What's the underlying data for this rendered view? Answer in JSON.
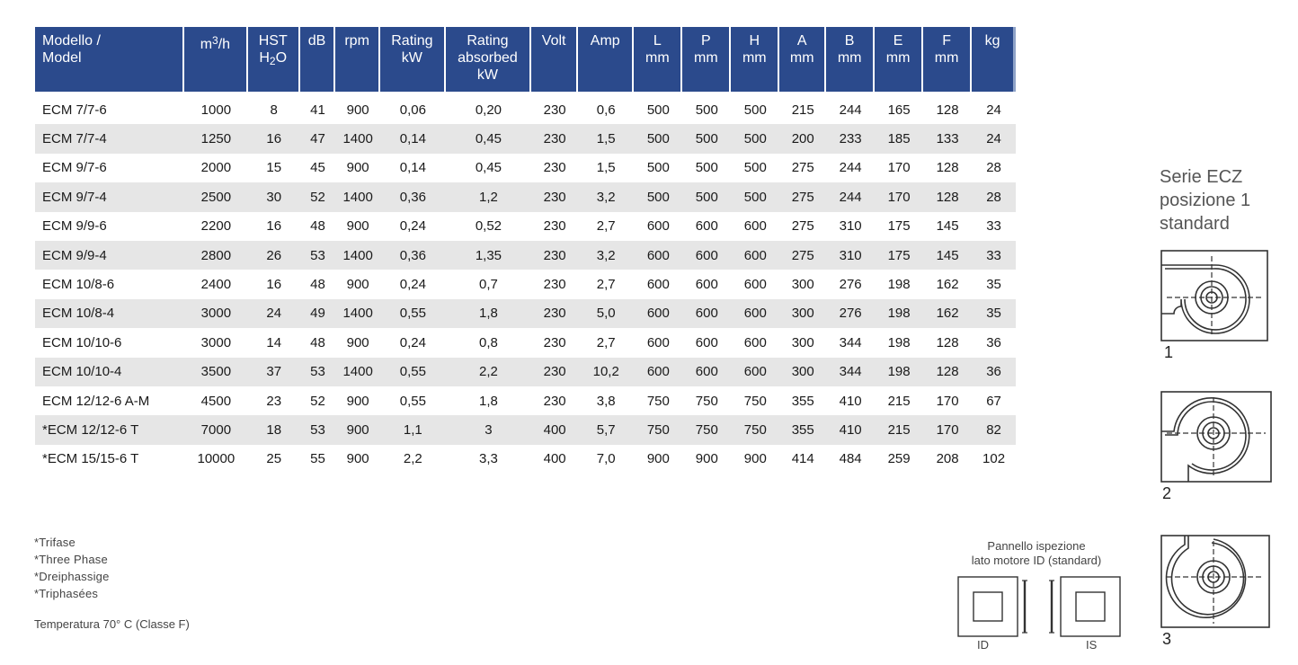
{
  "table": {
    "headers": [
      {
        "line1": "Modello /",
        "line2": "Model"
      },
      {
        "base": "m",
        "sup": "3",
        "rest": "/h"
      },
      {
        "line1": "HST",
        "base2": "H",
        "sub": "2",
        "rest2": "O"
      },
      {
        "line1": "dB"
      },
      {
        "line1": "rpm"
      },
      {
        "line1": "Rating",
        "line2": "kW"
      },
      {
        "line1": "Rating",
        "line2": "absorbed",
        "line3": "kW"
      },
      {
        "line1": "Volt"
      },
      {
        "line1": "Amp"
      },
      {
        "line1": "L",
        "line2": "mm"
      },
      {
        "line1": "P",
        "line2": "mm"
      },
      {
        "line1": "H",
        "line2": "mm"
      },
      {
        "line1": "A",
        "line2": "mm"
      },
      {
        "line1": "B",
        "line2": "mm"
      },
      {
        "line1": "E",
        "line2": "mm"
      },
      {
        "line1": "F",
        "line2": "mm"
      },
      {
        "line1": "kg"
      }
    ],
    "rows": [
      [
        "ECM 7/7-6",
        "1000",
        "8",
        "41",
        "900",
        "0,06",
        "0,20",
        "230",
        "0,6",
        "500",
        "500",
        "500",
        "215",
        "244",
        "165",
        "128",
        "24"
      ],
      [
        "ECM 7/7-4",
        "1250",
        "16",
        "47",
        "1400",
        "0,14",
        "0,45",
        "230",
        "1,5",
        "500",
        "500",
        "500",
        "200",
        "233",
        "185",
        "133",
        "24"
      ],
      [
        "ECM 9/7-6",
        "2000",
        "15",
        "45",
        "900",
        "0,14",
        "0,45",
        "230",
        "1,5",
        "500",
        "500",
        "500",
        "275",
        "244",
        "170",
        "128",
        "28"
      ],
      [
        "ECM 9/7-4",
        "2500",
        "30",
        "52",
        "1400",
        "0,36",
        "1,2",
        "230",
        "3,2",
        "500",
        "500",
        "500",
        "275",
        "244",
        "170",
        "128",
        "28"
      ],
      [
        "ECM 9/9-6",
        "2200",
        "16",
        "48",
        "900",
        "0,24",
        "0,52",
        "230",
        "2,7",
        "600",
        "600",
        "600",
        "275",
        "310",
        "175",
        "145",
        "33"
      ],
      [
        "ECM 9/9-4",
        "2800",
        "26",
        "53",
        "1400",
        "0,36",
        "1,35",
        "230",
        "3,2",
        "600",
        "600",
        "600",
        "275",
        "310",
        "175",
        "145",
        "33"
      ],
      [
        "ECM 10/8-6",
        "2400",
        "16",
        "48",
        "900",
        "0,24",
        "0,7",
        "230",
        "2,7",
        "600",
        "600",
        "600",
        "300",
        "276",
        "198",
        "162",
        "35"
      ],
      [
        "ECM 10/8-4",
        "3000",
        "24",
        "49",
        "1400",
        "0,55",
        "1,8",
        "230",
        "5,0",
        "600",
        "600",
        "600",
        "300",
        "276",
        "198",
        "162",
        "35"
      ],
      [
        "ECM 10/10-6",
        "3000",
        "14",
        "48",
        "900",
        "0,24",
        "0,8",
        "230",
        "2,7",
        "600",
        "600",
        "600",
        "300",
        "344",
        "198",
        "128",
        "36"
      ],
      [
        "ECM 10/10-4",
        "3500",
        "37",
        "53",
        "1400",
        "0,55",
        "2,2",
        "230",
        "10,2",
        "600",
        "600",
        "600",
        "300",
        "344",
        "198",
        "128",
        "36"
      ],
      [
        "ECM 12/12-6 A-M",
        "4500",
        "23",
        "52",
        "900",
        "0,55",
        "1,8",
        "230",
        "3,8",
        "750",
        "750",
        "750",
        "355",
        "410",
        "215",
        "170",
        "67"
      ],
      [
        "*ECM 12/12-6 T",
        "7000",
        "18",
        "53",
        "900",
        "1,1",
        "3",
        "400",
        "5,7",
        "750",
        "750",
        "750",
        "355",
        "410",
        "215",
        "170",
        "82"
      ],
      [
        "*ECM 15/15-6 T",
        "10000",
        "25",
        "55",
        "900",
        "2,2",
        "3,3",
        "400",
        "7,0",
        "900",
        "900",
        "900",
        "414",
        "484",
        "259",
        "208",
        "102"
      ]
    ]
  },
  "footnotes": [
    "*Trifase",
    "*Three Phase",
    "*Dreiphassige",
    "*Triphasées"
  ],
  "temperature_note": "Temperatura 70° C (Classe F)",
  "serie": {
    "line1": "Serie ECZ",
    "line2": "posizione 1",
    "line3": "standard"
  },
  "positions": [
    "1",
    "2",
    "3"
  ],
  "panel": {
    "line1": "Pannello ispezione",
    "line2": "lato motore ID (standard)",
    "label_left": "ID",
    "label_right": "IS"
  },
  "colors": {
    "header_bg": "#2b4a8c",
    "stripe": "#e6e6e6"
  }
}
